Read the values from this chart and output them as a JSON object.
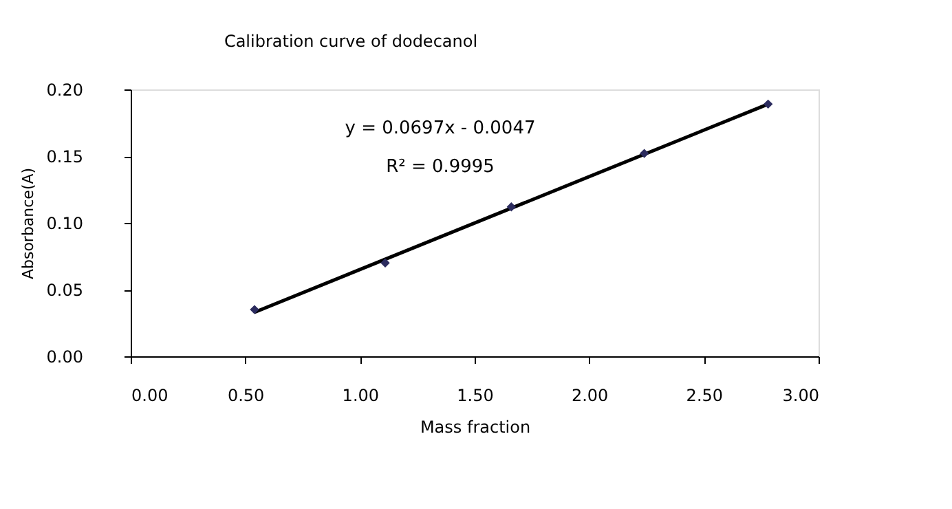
{
  "chart_data": {
    "type": "scatter",
    "title": "Calibration curve of dodecanol",
    "xlabel": "Mass fraction",
    "ylabel": "Absorbance(A)",
    "xlim": [
      0,
      3
    ],
    "xticks": [
      {
        "value": 0,
        "label": "0.00"
      },
      {
        "value": 0.5,
        "label": "0.50"
      },
      {
        "value": 1,
        "label": "1.00"
      },
      {
        "value": 1.5,
        "label": "1.50"
      },
      {
        "value": 2,
        "label": "2.00"
      },
      {
        "value": 2.5,
        "label": "2.50"
      },
      {
        "value": 3,
        "label": "3.00"
      }
    ],
    "ylim": [
      0,
      0.2
    ],
    "yticks": [
      {
        "value": 0,
        "label": "0.00"
      },
      {
        "value": 0.05,
        "label": "0.05"
      },
      {
        "value": 0.1,
        "label": "0.10"
      },
      {
        "value": 0.15,
        "label": "0.15"
      },
      {
        "value": 0.2,
        "label": "0.20"
      }
    ],
    "grid": false,
    "series": [
      {
        "color": "#2b2b5e",
        "marker": "diamond",
        "x": [
          0.54,
          1.11,
          1.66,
          2.24,
          2.78
        ],
        "values": [
          0.035,
          0.07,
          0.112,
          0.152,
          0.189
        ]
      },
      {
        "type": "line",
        "color": "#000000",
        "marker": "none",
        "line_style": "solid",
        "x": [
          0.54,
          2.78
        ],
        "values": [
          0.033,
          0.189
        ]
      }
    ],
    "annotations": [
      "y = 0.0697x - 0.0047",
      "R² = 0.9995"
    ]
  }
}
